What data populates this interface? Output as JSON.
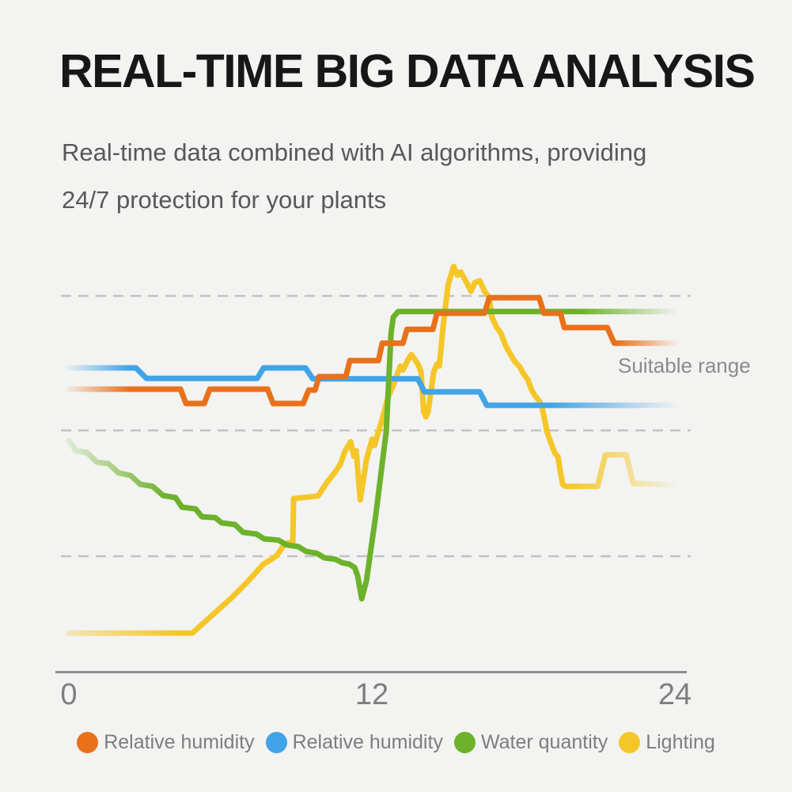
{
  "page": {
    "background": "#f3f3f1"
  },
  "header": {
    "title": "REAL-TIME BIG DATA ANALYSIS",
    "subtitle_line1": "Real-time data combined with AI algorithms, providing",
    "subtitle_line2": "24/7 protection for your plants"
  },
  "annotation": {
    "suitable_range": "Suitable range"
  },
  "chart_data": {
    "type": "line",
    "title": "",
    "xlabel": "",
    "ylabel": "",
    "x_axis": {
      "range": [
        0,
        24
      ],
      "ticks": [
        0,
        12,
        24
      ]
    },
    "y_axis": {
      "range": [
        0,
        100
      ],
      "ticks": []
    },
    "gridlines_y": [
      90,
      59,
      30
    ],
    "grid_style": "dashed",
    "legend_position": "bottom",
    "colors": {
      "grid": "#c2c2c2",
      "axis": "#8f8f8f",
      "text_gray": "#7d7d7d"
    },
    "series": [
      {
        "name": "Relative humidity",
        "color": "#e8711a",
        "fade": {
          "in_until": 2.4,
          "out_from": 21.7,
          "start_opacity": 0.06
        },
        "points": [
          [
            0,
            68.5
          ],
          [
            4.42,
            68.5
          ],
          [
            4.64,
            65.2
          ],
          [
            5.36,
            65.2
          ],
          [
            5.58,
            68.5
          ],
          [
            7.87,
            68.5
          ],
          [
            8.09,
            65.2
          ],
          [
            9.28,
            65.2
          ],
          [
            9.5,
            68.3
          ],
          [
            9.75,
            68.3
          ],
          [
            9.91,
            71.4
          ],
          [
            10.97,
            71.4
          ],
          [
            11.13,
            75.1
          ],
          [
            12.26,
            75.1
          ],
          [
            12.41,
            79.1
          ],
          [
            13.23,
            79.1
          ],
          [
            13.39,
            82.3
          ],
          [
            14.42,
            82.3
          ],
          [
            14.58,
            86
          ],
          [
            16.46,
            86
          ],
          [
            16.65,
            89.6
          ],
          [
            18.62,
            89.6
          ],
          [
            18.81,
            86
          ],
          [
            19.47,
            86
          ],
          [
            19.62,
            82.7
          ],
          [
            21.32,
            82.7
          ],
          [
            21.6,
            79.1
          ],
          [
            24.1,
            79.1
          ]
        ]
      },
      {
        "name": "Relative humidity",
        "color": "#41a4e6",
        "fade": {
          "in_until": 2.4,
          "out_from": 19.0,
          "start_opacity": 0.06
        },
        "points": [
          [
            0,
            73.4
          ],
          [
            2.66,
            73.4
          ],
          [
            3.07,
            71
          ],
          [
            7.46,
            71
          ],
          [
            7.71,
            73.4
          ],
          [
            9.37,
            73.4
          ],
          [
            9.66,
            70.9
          ],
          [
            13.82,
            70.9
          ],
          [
            14.08,
            67.9
          ],
          [
            16.27,
            67.9
          ],
          [
            16.55,
            64.8
          ],
          [
            24.05,
            64.8
          ]
        ]
      },
      {
        "name": "Water quantity",
        "color": "#6cb22a",
        "fade": {
          "in_until": 3.9,
          "out_from": 20.3,
          "start_opacity": 0.13
        },
        "points": [
          [
            0,
            56.6
          ],
          [
            0.28,
            54.3
          ],
          [
            0.72,
            53.9
          ],
          [
            1.1,
            51.7
          ],
          [
            1.57,
            51.3
          ],
          [
            1.97,
            49.2
          ],
          [
            2.45,
            48.6
          ],
          [
            2.82,
            46.6
          ],
          [
            3.32,
            46.1
          ],
          [
            3.73,
            44
          ],
          [
            4.23,
            43.5
          ],
          [
            4.48,
            41.3
          ],
          [
            5.02,
            40.9
          ],
          [
            5.27,
            39.1
          ],
          [
            5.8,
            38.9
          ],
          [
            6.05,
            37.7
          ],
          [
            6.58,
            37.3
          ],
          [
            6.9,
            35.5
          ],
          [
            7.43,
            35.1
          ],
          [
            7.74,
            34
          ],
          [
            8.31,
            33.7
          ],
          [
            8.62,
            32.6
          ],
          [
            9.09,
            32.2
          ],
          [
            9.4,
            31.1
          ],
          [
            9.81,
            30.7
          ],
          [
            10.13,
            29.6
          ],
          [
            10.56,
            29.3
          ],
          [
            10.82,
            28.5
          ],
          [
            11.1,
            28.2
          ],
          [
            11.32,
            27.4
          ],
          [
            11.44,
            25.4
          ],
          [
            11.6,
            20.2
          ],
          [
            11.79,
            24.5
          ],
          [
            12.16,
            39.7
          ],
          [
            12.57,
            58.8
          ],
          [
            12.76,
            81.6
          ],
          [
            12.85,
            85.1
          ],
          [
            13.04,
            86.4
          ],
          [
            24,
            86.4
          ]
        ]
      },
      {
        "name": "Lighting",
        "color": "#f5c627",
        "fade": {
          "in_until": 4.3,
          "out_from": 19.8,
          "start_opacity": 0.3
        },
        "points": [
          [
            0,
            12.3
          ],
          [
            4.89,
            12.3
          ],
          [
            5.83,
            17.2
          ],
          [
            6.46,
            20.5
          ],
          [
            7.09,
            24.2
          ],
          [
            7.71,
            28.2
          ],
          [
            8.03,
            29.3
          ],
          [
            8.24,
            30.2
          ],
          [
            8.56,
            32.9
          ],
          [
            8.87,
            33.3
          ],
          [
            8.9,
            43.3
          ],
          [
            9.87,
            43.9
          ],
          [
            10.22,
            47
          ],
          [
            10.53,
            49.3
          ],
          [
            10.75,
            51.2
          ],
          [
            10.94,
            54.3
          ],
          [
            11.16,
            56.4
          ],
          [
            11.29,
            53
          ],
          [
            11.38,
            54.3
          ],
          [
            11.54,
            43
          ],
          [
            11.79,
            52.4
          ],
          [
            12.01,
            57
          ],
          [
            12.1,
            55.5
          ],
          [
            12.41,
            61.6
          ],
          [
            12.63,
            66.5
          ],
          [
            12.85,
            69.4
          ],
          [
            13.04,
            72.5
          ],
          [
            13.13,
            73.8
          ],
          [
            13.23,
            72.9
          ],
          [
            13.42,
            75.2
          ],
          [
            13.57,
            76.5
          ],
          [
            13.82,
            74.3
          ],
          [
            13.95,
            72.5
          ],
          [
            14.05,
            63.4
          ],
          [
            14.14,
            62.1
          ],
          [
            14.23,
            63.4
          ],
          [
            14.45,
            72.5
          ],
          [
            14.58,
            74.3
          ],
          [
            14.67,
            73.8
          ],
          [
            14.83,
            83.4
          ],
          [
            15.02,
            92.6
          ],
          [
            15.24,
            96.8
          ],
          [
            15.39,
            94.8
          ],
          [
            15.52,
            95.5
          ],
          [
            15.71,
            93.5
          ],
          [
            15.93,
            91.1
          ],
          [
            16.08,
            93.1
          ],
          [
            16.27,
            93.5
          ],
          [
            16.46,
            91.1
          ],
          [
            16.65,
            89.6
          ],
          [
            16.74,
            85.3
          ],
          [
            16.93,
            82.9
          ],
          [
            17.12,
            81.3
          ],
          [
            17.3,
            78.5
          ],
          [
            17.49,
            76.5
          ],
          [
            17.68,
            74.7
          ],
          [
            17.84,
            73.8
          ],
          [
            18,
            72.1
          ],
          [
            18.18,
            70.7
          ],
          [
            18.31,
            68.5
          ],
          [
            18.46,
            67
          ],
          [
            18.62,
            65.9
          ],
          [
            18.72,
            64.7
          ],
          [
            18.84,
            61.6
          ],
          [
            18.93,
            58.8
          ],
          [
            19.09,
            56.1
          ],
          [
            19.25,
            53.7
          ],
          [
            19.37,
            53
          ],
          [
            19.47,
            49.2
          ],
          [
            19.56,
            46.6
          ],
          [
            19.66,
            46.1
          ],
          [
            20.94,
            46.1
          ],
          [
            21.25,
            53.4
          ],
          [
            22.07,
            53.4
          ],
          [
            22.35,
            46.8
          ],
          [
            24.1,
            46.4
          ]
        ]
      }
    ]
  }
}
